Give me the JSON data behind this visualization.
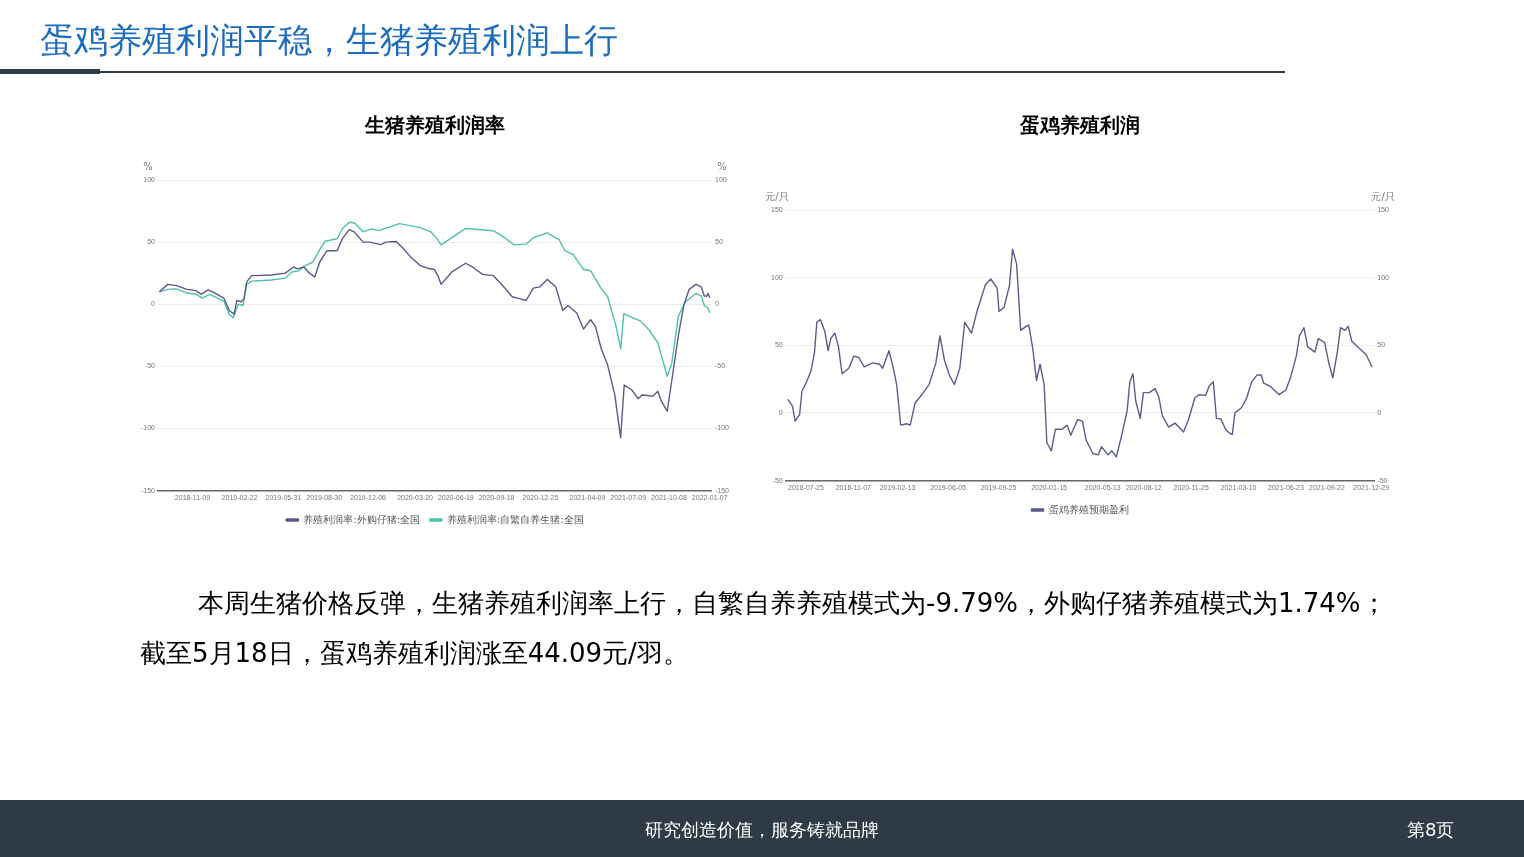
{
  "chart_data": [
    {
      "type": "other",
      "title": "蛋鸡养殖利润平稳，生猪养殖利润上行",
      "annotations": [
        "本周生猪价格反弹，生猪养殖利润率上行，自繁自养养殖模式为-9.79%，外购仔猪养殖模式为1.74%；截至5月18日，蛋鸡养殖利润涨至44.09元/羽。",
        "研究创造价值，服务铸就品牌",
        "第8页"
      ]
    },
    {
      "type": "line",
      "title": "生猪养殖利润率",
      "ylabel": "%",
      "y2label": "%",
      "xlim": [
        "2018-08-24",
        "2022-01-12"
      ],
      "xticks": [
        "2018-11-09",
        "2019-02-22",
        "2019-05-31",
        "2019-08-30",
        "2019-12-06",
        "2020-03-20",
        "2020-06-19",
        "2020-09-18",
        "2020-12-25",
        "2021-04-09",
        "2021-07-09",
        "2021-10-08",
        "2022-01-07"
      ],
      "ylim": [
        -150,
        100
      ],
      "yticks": [
        -150,
        -100,
        -50,
        0,
        50,
        100
      ],
      "y2lim": [
        -150,
        100
      ],
      "y2ticks": [
        -150,
        -100,
        -50,
        0,
        50,
        100
      ],
      "grid": "y",
      "legend": "bottom",
      "marker": "none",
      "series": [
        {
          "name": "养殖利润率:外购仔猪:全国",
          "color": "#5b5a8c",
          "x": [
            "2018-08-27",
            "2018-09-15",
            "2018-10-04",
            "2018-10-28",
            "2018-11-17",
            "2018-11-28",
            "2018-12-14",
            "2018-12-29",
            "2019-01-18",
            "2019-01-30",
            "2019-02-10",
            "2019-02-16",
            "2019-02-26",
            "2019-03-04",
            "2019-03-10",
            "2019-03-21",
            "2019-05-04",
            "2019-06-04",
            "2019-06-23",
            "2019-07-01",
            "2019-07-16",
            "2019-07-28",
            "2019-08-09",
            "2019-08-20",
            "2019-09-05",
            "2019-09-28",
            "2019-10-10",
            "2019-10-25",
            "2019-11-06",
            "2019-11-25",
            "2019-12-11",
            "2020-01-03",
            "2020-01-15",
            "2020-02-07",
            "2020-02-22",
            "2020-03-09",
            "2020-04-01",
            "2020-04-17",
            "2020-05-02",
            "2020-05-10",
            "2020-05-17",
            "2020-06-10",
            "2020-07-11",
            "2020-07-26",
            "2020-08-18",
            "2020-09-11",
            "2020-10-04",
            "2020-10-23",
            "2020-11-08",
            "2020-11-23",
            "2020-12-09",
            "2020-12-24",
            "2021-01-09",
            "2021-01-28",
            "2021-02-13",
            "2021-02-24",
            "2021-03-16",
            "2021-03-31",
            "2021-04-16",
            "2021-04-27",
            "2021-05-09",
            "2021-05-24",
            "2021-06-09",
            "2021-06-22",
            "2021-06-30",
            "2021-07-17",
            "2021-07-31",
            "2021-08-09",
            "2021-09-02",
            "2021-09-13",
            "2021-09-21",
            "2021-10-04",
            "2021-10-14",
            "2021-10-29",
            "2021-11-10",
            "2021-11-22",
            "2021-12-07",
            "2021-12-19",
            "2021-12-26",
            "2021-12-31",
            "2022-01-03",
            "2022-01-07"
          ],
          "values": [
            10,
            16,
            15,
            12,
            11,
            8,
            11.5,
            9,
            5,
            -5,
            -8,
            3,
            2,
            4.5,
            18,
            23,
            23.5,
            25,
            30,
            28.5,
            30,
            25,
            22,
            34,
            43,
            43,
            53,
            60,
            58,
            50,
            50,
            48,
            50,
            50.5,
            45,
            38.5,
            31,
            29,
            28,
            23,
            16,
            26,
            33,
            30,
            24,
            23,
            14,
            6,
            4.5,
            3,
            13,
            14,
            20,
            14,
            -5,
            -1,
            -7,
            -20,
            -12.5,
            -18,
            -35,
            -49,
            -73,
            -107.5,
            -65,
            -69,
            -76,
            -73,
            -74,
            -70,
            -78,
            -86,
            -62,
            -25,
            -1,
            12,
            16,
            14,
            6.5,
            6.5,
            8.7,
            5.3
          ]
        },
        {
          "name": "养殖利润率:自繁自养生猪:全国",
          "color": "#4ec3ad",
          "x": [
            "2018-08-27",
            "2018-09-15",
            "2018-10-04",
            "2018-10-28",
            "2018-11-17",
            "2018-12-01",
            "2018-12-17",
            "2019-01-18",
            "2019-01-30",
            "2019-02-08",
            "2019-02-19",
            "2019-03-02",
            "2019-03-10",
            "2019-03-21",
            "2019-05-04",
            "2019-06-04",
            "2019-06-19",
            "2019-07-05",
            "2019-07-16",
            "2019-08-05",
            "2019-08-20",
            "2019-09-01",
            "2019-09-28",
            "2019-10-10",
            "2019-10-25",
            "2019-11-06",
            "2019-11-25",
            "2019-12-14",
            "2019-12-30",
            "2020-02-14",
            "2020-04-01",
            "2020-04-24",
            "2020-05-10",
            "2020-05-17",
            "2020-07-11",
            "2020-09-11",
            "2020-10-04",
            "2020-10-27",
            "2020-11-23",
            "2020-12-09",
            "2021-01-09",
            "2021-02-05",
            "2021-02-17",
            "2021-03-08",
            "2021-03-31",
            "2021-04-16",
            "2021-05-09",
            "2021-05-24",
            "2021-06-12",
            "2021-06-22",
            "2021-06-29",
            "2021-07-17",
            "2021-08-05",
            "2021-08-25",
            "2021-09-13",
            "2021-10-04",
            "2021-10-14",
            "2021-10-29",
            "2021-11-13",
            "2021-12-07",
            "2021-12-19",
            "2021-12-26",
            "2022-01-02",
            "2022-01-07"
          ],
          "values": [
            10,
            12,
            12.4,
            9,
            8,
            5,
            8,
            2.5,
            -8,
            -11,
            0,
            -1,
            16,
            18.6,
            19.5,
            21,
            26,
            27,
            30.5,
            34,
            44,
            50.7,
            52.7,
            61,
            66,
            65.4,
            58.3,
            60.6,
            59.2,
            64.9,
            61.7,
            58.3,
            51.8,
            47.8,
            61,
            59.2,
            54,
            47.8,
            48.4,
            53.5,
            57.5,
            51.8,
            43.3,
            40,
            28,
            27,
            13,
            6,
            -18,
            -36,
            -7.6,
            -10.5,
            -13.4,
            -21,
            -31,
            -58,
            -48,
            -9.6,
            1.6,
            8.7,
            6.7,
            -1.2,
            -2.6,
            -6.9
          ]
        }
      ]
    },
    {
      "type": "line",
      "title": "蛋鸡养殖利润",
      "ylabel": "元/只",
      "y2label": "元/只",
      "xlim": [
        "2018-06-10",
        "2022-01-05"
      ],
      "xticks": [
        "2018-07-25",
        "2018-11-07",
        "2019-02-13",
        "2019-06-05",
        "2019-09-25",
        "2020-01-15",
        "2020-05-13",
        "2020-08-12",
        "2020-11-25",
        "2021-03-10",
        "2021-06-23",
        "2021-09-22",
        "2021-12-29"
      ],
      "ylim": [
        -50,
        150
      ],
      "yticks": [
        -50,
        0,
        50,
        100,
        150
      ],
      "y2lim": [
        -50,
        150
      ],
      "y2ticks": [
        -50,
        0,
        50,
        100,
        150
      ],
      "grid": "y",
      "legend": "bottom",
      "marker": "none",
      "series": [
        {
          "name": "蛋鸡养殖预期盈利",
          "color": "#5a5d8e",
          "x": [
            "2018-06-15",
            "2018-06-25",
            "2018-07-01",
            "2018-07-11",
            "2018-07-16",
            "2018-07-25",
            "2018-08-05",
            "2018-08-13",
            "2018-08-18",
            "2018-08-26",
            "2018-09-05",
            "2018-09-12",
            "2018-09-18",
            "2018-09-27",
            "2018-10-05",
            "2018-10-13",
            "2018-10-28",
            "2018-11-08",
            "2018-11-19",
            "2018-12-01",
            "2018-12-20",
            "2019-01-04",
            "2019-01-11",
            "2019-01-25",
            "2019-02-03",
            "2019-02-11",
            "2019-02-20",
            "2019-03-05",
            "2019-03-13",
            "2019-03-24",
            "2019-04-08",
            "2019-04-24",
            "2019-05-09",
            "2019-05-18",
            "2019-05-28",
            "2019-06-08",
            "2019-06-19",
            "2019-07-01",
            "2019-07-12",
            "2019-07-27",
            "2019-08-08",
            "2019-08-27",
            "2019-09-08",
            "2019-09-22",
            "2019-09-26",
            "2019-10-07",
            "2019-10-19",
            "2019-10-26",
            "2019-11-04",
            "2019-11-13",
            "2019-11-25",
            "2019-12-01",
            "2019-12-10",
            "2019-12-18",
            "2019-12-26",
            "2020-01-04",
            "2020-01-10",
            "2020-01-20",
            "2020-01-29",
            "2020-02-13",
            "2020-02-24",
            "2020-03-03",
            "2020-03-18",
            "2020-03-29",
            "2020-04-06",
            "2020-04-21",
            "2020-05-03",
            "2020-05-10",
            "2020-05-25",
            "2020-06-02",
            "2020-06-12",
            "2020-06-24",
            "2020-07-06",
            "2020-07-12",
            "2020-07-19",
            "2020-07-25",
            "2020-08-04",
            "2020-08-11",
            "2020-08-24",
            "2020-09-06",
            "2020-09-14",
            "2020-09-22",
            "2020-10-06",
            "2020-10-20",
            "2020-11-08",
            "2020-11-19",
            "2020-12-03",
            "2020-12-12",
            "2020-12-27",
            "2021-01-04",
            "2021-01-13",
            "2021-01-20",
            "2021-01-30",
            "2021-02-09",
            "2021-02-18",
            "2021-02-24",
            "2021-03-02",
            "2021-03-17",
            "2021-03-28",
            "2021-04-08",
            "2021-04-20",
            "2021-04-29",
            "2021-05-05",
            "2021-05-20",
            "2021-06-08",
            "2021-06-23",
            "2021-07-04",
            "2021-07-16",
            "2021-07-23",
            "2021-08-02",
            "2021-08-10",
            "2021-08-26",
            "2021-09-03",
            "2021-09-17",
            "2021-09-26",
            "2021-10-05",
            "2021-10-15",
            "2021-10-22",
            "2021-11-01",
            "2021-11-08",
            "2021-11-16",
            "2021-11-29",
            "2021-12-18",
            "2021-12-31"
          ],
          "values": [
            10,
            5,
            -6,
            -1,
            16,
            22,
            31,
            45,
            67,
            69,
            60,
            46,
            55,
            59,
            49,
            29,
            33,
            42,
            41,
            34,
            37,
            36,
            33,
            46,
            34,
            21,
            -9,
            -8,
            -9,
            7.5,
            13.5,
            21,
            37,
            57,
            39,
            28,
            21,
            33,
            67,
            59,
            75,
            95,
            99,
            92,
            75,
            78,
            94,
            121,
            110,
            61,
            64,
            65,
            47,
            24,
            36,
            21,
            -22,
            -28,
            -12,
            -12,
            -9,
            -16.5,
            -5,
            -6,
            -20,
            -30,
            -31,
            -25,
            -31,
            -28,
            -32.5,
            -16.5,
            1.5,
            23,
            29,
            9,
            -4,
            15,
            15,
            18,
            12,
            -2,
            -10.5,
            -7.5,
            -14,
            -5,
            11,
            13.5,
            13,
            20,
            23,
            -4,
            -4.5,
            -12,
            -15,
            -16,
            0,
            4,
            11,
            23,
            28,
            28,
            22,
            19.5,
            13.5,
            17,
            27,
            42,
            57,
            63,
            49,
            45,
            55,
            52,
            37,
            26,
            45,
            63,
            61,
            64,
            53,
            49,
            43,
            34
          ]
        }
      ]
    }
  ]
}
